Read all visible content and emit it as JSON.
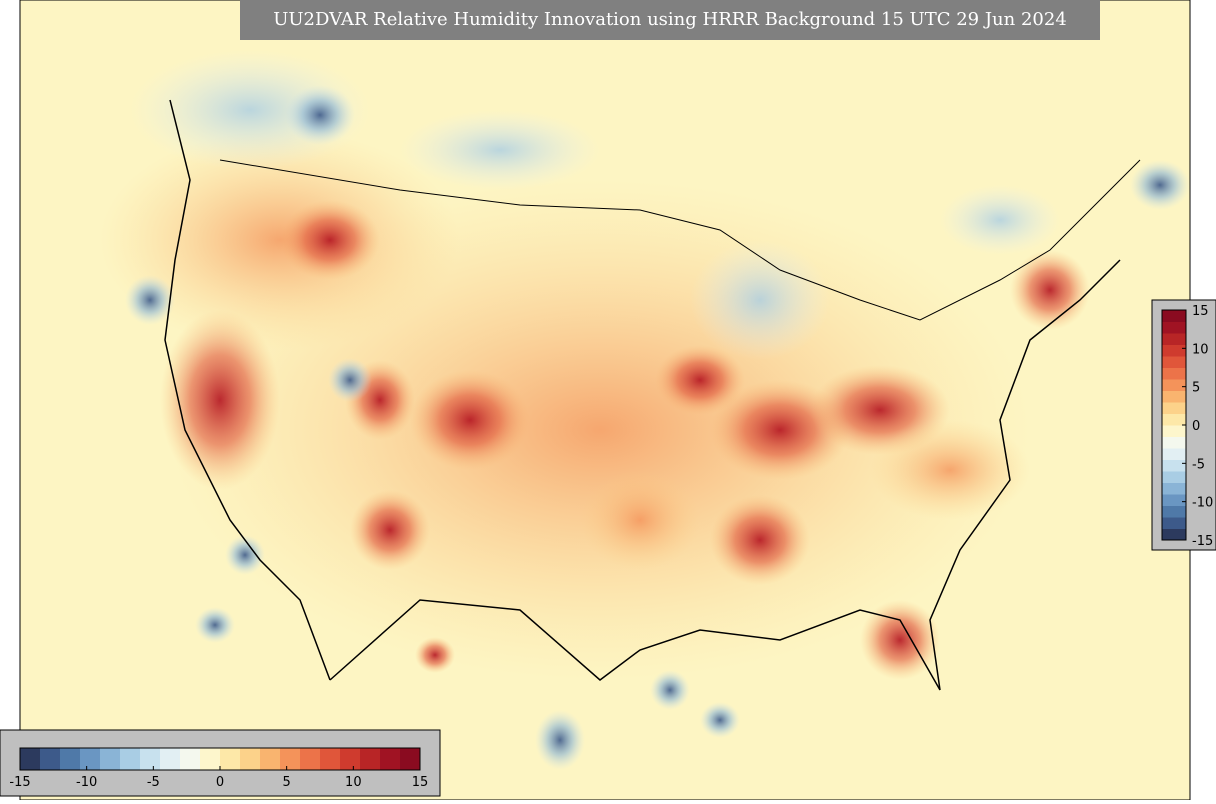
{
  "title": "UU2DVAR Relative Humidity Innovation using HRRR Background 15 UTC 29 Jun 2024",
  "colorbar": {
    "range": [
      -15,
      15
    ],
    "ticks": [
      -15,
      -10,
      -5,
      0,
      5,
      10,
      15
    ],
    "colors": [
      "#2c3a5e",
      "#3d5a8a",
      "#4f79a8",
      "#6a96c2",
      "#8ab4d6",
      "#a9cde4",
      "#c8e1ee",
      "#e2eff3",
      "#f4f8ee",
      "#fdf6cc",
      "#fde8a8",
      "#fcd28a",
      "#f9b46f",
      "#f4935a",
      "#ec7349",
      "#e0563a",
      "#cf3b2e",
      "#b82526",
      "#a01323",
      "#8a0b20"
    ]
  }
}
